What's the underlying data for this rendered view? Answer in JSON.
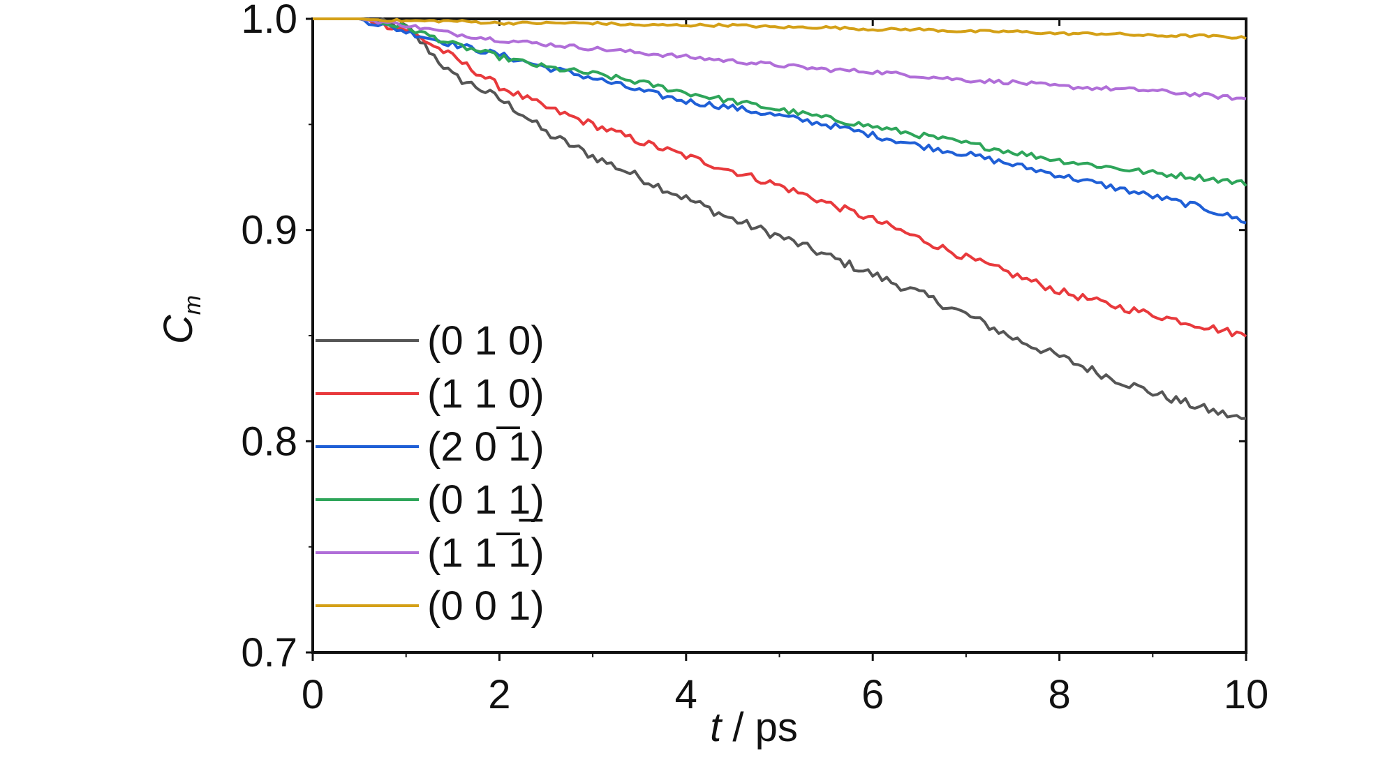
{
  "chart_data": {
    "type": "line",
    "title": "",
    "xlabel": {
      "italic": "t",
      "rest": " / ps"
    },
    "ylabel": {
      "main": "C",
      "sub": "m"
    },
    "xlim": [
      0,
      10
    ],
    "ylim": [
      0.7,
      1.0
    ],
    "xticks": [
      "0",
      "2",
      "4",
      "6",
      "8",
      "10"
    ],
    "yticks": [
      "0.7",
      "0.8",
      "0.9",
      "1.0"
    ],
    "grid": false,
    "legend_position": "lower-left",
    "series": [
      {
        "name": "(0 1 0)",
        "color": "#555555",
        "x": [
          0,
          0.5,
          1.0,
          1.25,
          1.5,
          1.75,
          2.0,
          2.25,
          2.5,
          3.0,
          3.5,
          4.0,
          4.5,
          5.0,
          5.5,
          6.0,
          6.5,
          7.0,
          7.5,
          8.0,
          8.5,
          9.0,
          9.5,
          10.0
        ],
        "y": [
          1.0,
          1.0,
          0.996,
          0.985,
          0.973,
          0.968,
          0.962,
          0.955,
          0.946,
          0.935,
          0.925,
          0.915,
          0.905,
          0.897,
          0.888,
          0.879,
          0.87,
          0.86,
          0.849,
          0.84,
          0.831,
          0.823,
          0.816,
          0.81
        ]
      },
      {
        "name": "(1 1 0)",
        "color": "#e8393c",
        "x": [
          0,
          0.5,
          1.0,
          1.5,
          2.0,
          2.5,
          3.0,
          3.5,
          4.0,
          4.5,
          5.0,
          5.5,
          6.0,
          6.5,
          7.0,
          7.5,
          8.0,
          8.5,
          9.0,
          9.5,
          10.0
        ],
        "y": [
          1.0,
          1.0,
          0.995,
          0.982,
          0.968,
          0.958,
          0.95,
          0.942,
          0.935,
          0.928,
          0.921,
          0.913,
          0.905,
          0.896,
          0.887,
          0.879,
          0.871,
          0.865,
          0.86,
          0.855,
          0.85
        ]
      },
      {
        "name": "(2 0 ̅1)",
        "color": "#1f5fd6",
        "x": [
          0,
          0.5,
          1.0,
          1.5,
          2.0,
          2.5,
          3.0,
          3.5,
          4.0,
          4.5,
          5.0,
          5.5,
          6.0,
          6.5,
          7.0,
          7.5,
          8.0,
          8.5,
          9.0,
          9.5,
          10.0
        ],
        "y": [
          1.0,
          1.0,
          0.994,
          0.988,
          0.983,
          0.977,
          0.972,
          0.966,
          0.961,
          0.958,
          0.954,
          0.95,
          0.945,
          0.94,
          0.936,
          0.931,
          0.926,
          0.921,
          0.916,
          0.911,
          0.904
        ]
      },
      {
        "name": "(0 1 1̲)",
        "color": "#2ea55a",
        "x": [
          0,
          0.5,
          1.0,
          1.5,
          2.0,
          2.5,
          3.0,
          3.5,
          4.0,
          4.5,
          5.0,
          5.5,
          6.0,
          6.5,
          7.0,
          7.5,
          8.0,
          8.5,
          9.0,
          9.5,
          10.0
        ],
        "y": [
          1.0,
          1.0,
          0.996,
          0.988,
          0.982,
          0.977,
          0.974,
          0.97,
          0.965,
          0.961,
          0.957,
          0.953,
          0.949,
          0.945,
          0.941,
          0.937,
          0.933,
          0.93,
          0.927,
          0.925,
          0.922
        ]
      },
      {
        "name": "(1 1 ̅1)",
        "color": "#b06ed8",
        "x": [
          0,
          0.5,
          1.0,
          1.5,
          2.0,
          2.5,
          3.0,
          3.5,
          4.0,
          4.5,
          5.0,
          5.5,
          6.0,
          6.5,
          7.0,
          7.5,
          8.0,
          8.5,
          9.0,
          9.5,
          10.0
        ],
        "y": [
          1.0,
          1.0,
          0.997,
          0.993,
          0.99,
          0.988,
          0.986,
          0.984,
          0.982,
          0.98,
          0.978,
          0.976,
          0.975,
          0.973,
          0.971,
          0.97,
          0.968,
          0.967,
          0.966,
          0.964,
          0.962
        ]
      },
      {
        "name": "(0 0 1)",
        "color": "#d4a017",
        "x": [
          0,
          0.5,
          1.0,
          1.5,
          2.0,
          2.5,
          3.0,
          3.5,
          4.0,
          4.5,
          5.0,
          5.5,
          6.0,
          6.5,
          7.0,
          7.5,
          8.0,
          8.5,
          9.0,
          9.5,
          10.0
        ],
        "y": [
          1.0,
          1.0,
          0.999,
          0.999,
          0.998,
          0.998,
          0.998,
          0.997,
          0.997,
          0.997,
          0.996,
          0.996,
          0.995,
          0.995,
          0.994,
          0.994,
          0.993,
          0.993,
          0.992,
          0.992,
          0.991
        ]
      }
    ]
  }
}
